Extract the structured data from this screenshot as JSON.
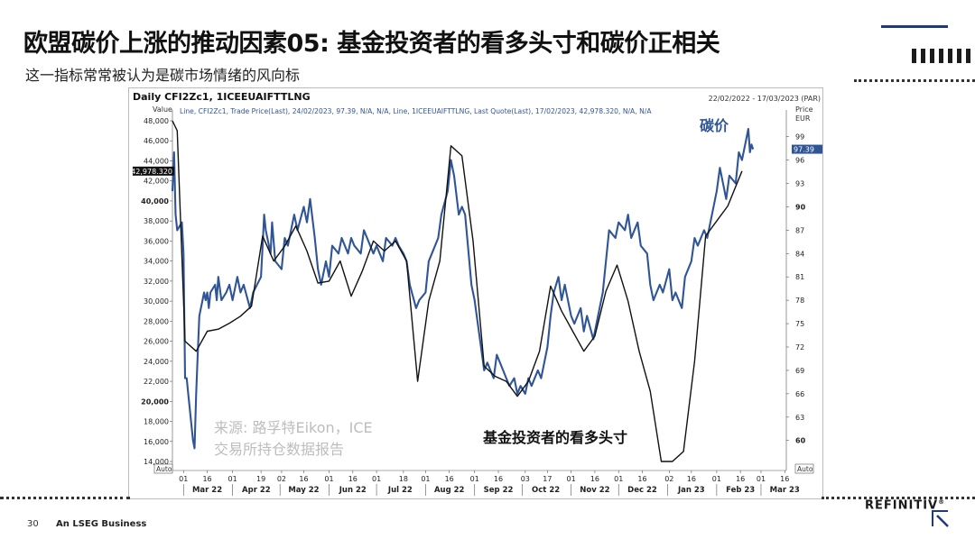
{
  "page": {
    "title": "欧盟碳价上涨的推动因素05: 基金投资者的看多头寸和碳价正相关",
    "subtitle": "这一指标常常被认为是碳市场情绪的风向标",
    "page_number": "30",
    "footer_text": "An LSEG Business",
    "brand": "REFINITIV",
    "brand_mark": "®"
  },
  "chart_data": {
    "type": "line",
    "header_title": "Daily CFI2Zc1, 1ICEEUAIFTTLNG",
    "date_range": "22/02/2022 - 17/03/2023 (PAR)",
    "legend_text": "Line, CFI2Zc1, Trade Price(Last), 24/02/2023, 97.39, N/A, N/A, Line, 1ICEEUAIFTTLNG, Last Quote(Last), 17/02/2023, 42,978.320, N/A, N/A",
    "left_axis_title": "Value",
    "right_axis_title": "Price",
    "right_axis_unit": "EUR",
    "left_axis": {
      "min": 14000,
      "max": 48000,
      "ticks": [
        "48,000",
        "46,000",
        "44,000",
        "42,000",
        "40,000",
        "38,000",
        "36,000",
        "34,000",
        "32,000",
        "30,000",
        "28,000",
        "26,000",
        "24,000",
        "22,000",
        "20,000",
        "18,000",
        "16,000",
        "14,000"
      ],
      "tick_values": [
        48000,
        46000,
        44000,
        42000,
        40000,
        38000,
        36000,
        34000,
        32000,
        30000,
        28000,
        26000,
        24000,
        22000,
        20000,
        18000,
        16000,
        14000
      ]
    },
    "right_axis": {
      "min": 58,
      "max": 100,
      "ticks": [
        "99",
        "96",
        "93",
        "90",
        "87",
        "84",
        "81",
        "78",
        "75",
        "72",
        "69",
        "66",
        "63",
        "60"
      ],
      "tick_values": [
        99,
        96,
        93,
        90,
        87,
        84,
        81,
        78,
        75,
        72,
        69,
        66,
        63,
        60
      ]
    },
    "last_value_left": "42,978.320",
    "last_value_right": "97.39",
    "auto_label": "Auto",
    "x_axis": {
      "start": "2022-02-22",
      "end": "2023-03-17",
      "day_ticks": [
        {
          "date": "2022-03-01",
          "label": "01"
        },
        {
          "date": "2022-03-16",
          "label": "16"
        },
        {
          "date": "2022-04-01",
          "label": "01"
        },
        {
          "date": "2022-04-19",
          "label": "19"
        },
        {
          "date": "2022-05-02",
          "label": "02"
        },
        {
          "date": "2022-05-16",
          "label": "16"
        },
        {
          "date": "2022-06-01",
          "label": "01"
        },
        {
          "date": "2022-06-16",
          "label": "16"
        },
        {
          "date": "2022-07-01",
          "label": "01"
        },
        {
          "date": "2022-07-18",
          "label": "18"
        },
        {
          "date": "2022-08-01",
          "label": "01"
        },
        {
          "date": "2022-08-16",
          "label": "16"
        },
        {
          "date": "2022-09-01",
          "label": "01"
        },
        {
          "date": "2022-09-16",
          "label": "16"
        },
        {
          "date": "2022-10-03",
          "label": "03"
        },
        {
          "date": "2022-10-17",
          "label": "17"
        },
        {
          "date": "2022-11-01",
          "label": "01"
        },
        {
          "date": "2022-11-16",
          "label": "16"
        },
        {
          "date": "2022-12-01",
          "label": "01"
        },
        {
          "date": "2022-12-16",
          "label": "16"
        },
        {
          "date": "2023-01-02",
          "label": "02"
        },
        {
          "date": "2023-01-16",
          "label": "16"
        },
        {
          "date": "2023-02-01",
          "label": "01"
        },
        {
          "date": "2023-02-16",
          "label": "16"
        },
        {
          "date": "2023-03-01",
          "label": "01"
        },
        {
          "date": "2023-03-16",
          "label": "16"
        }
      ],
      "month_labels": [
        {
          "date": "2022-03-16",
          "label": "Mar 22"
        },
        {
          "date": "2022-04-16",
          "label": "Apr 22"
        },
        {
          "date": "2022-05-16",
          "label": "May 22"
        },
        {
          "date": "2022-06-16",
          "label": "Jun 22"
        },
        {
          "date": "2022-07-16",
          "label": "Jul 22"
        },
        {
          "date": "2022-08-16",
          "label": "Aug 22"
        },
        {
          "date": "2022-09-16",
          "label": "Sep 22"
        },
        {
          "date": "2022-10-16",
          "label": "Oct 22"
        },
        {
          "date": "2022-11-16",
          "label": "Nov 22"
        },
        {
          "date": "2022-12-16",
          "label": "Dec 22"
        },
        {
          "date": "2023-01-16",
          "label": "Jan 23"
        },
        {
          "date": "2023-02-16",
          "label": "Feb 23"
        },
        {
          "date": "2023-03-16",
          "label": "Mar 23"
        }
      ],
      "month_starts": [
        "2022-03-01",
        "2022-04-01",
        "2022-05-01",
        "2022-06-01",
        "2022-07-01",
        "2022-08-01",
        "2022-09-01",
        "2022-10-01",
        "2022-11-01",
        "2022-12-01",
        "2023-01-01",
        "2023-02-01",
        "2023-03-01"
      ]
    },
    "series": [
      {
        "name": "碳价",
        "description": "CFI2Zc1 Trade Price (EUR, right axis)",
        "axis": "right",
        "color": "#2f5597",
        "points": [
          [
            "2022-02-22",
            92
          ],
          [
            "2022-02-23",
            97
          ],
          [
            "2022-02-24",
            89
          ],
          [
            "2022-02-25",
            87
          ],
          [
            "2022-02-28",
            88
          ],
          [
            "2022-03-01",
            84
          ],
          [
            "2022-03-02",
            68
          ],
          [
            "2022-03-03",
            68
          ],
          [
            "2022-03-04",
            66
          ],
          [
            "2022-03-07",
            60
          ],
          [
            "2022-03-08",
            59
          ],
          [
            "2022-03-09",
            66
          ],
          [
            "2022-03-10",
            71
          ],
          [
            "2022-03-11",
            76
          ],
          [
            "2022-03-14",
            79
          ],
          [
            "2022-03-15",
            78
          ],
          [
            "2022-03-16",
            79
          ],
          [
            "2022-03-17",
            77
          ],
          [
            "2022-03-18",
            79
          ],
          [
            "2022-03-21",
            80
          ],
          [
            "2022-03-22",
            78
          ],
          [
            "2022-03-23",
            81
          ],
          [
            "2022-03-25",
            78
          ],
          [
            "2022-03-28",
            79
          ],
          [
            "2022-03-30",
            80
          ],
          [
            "2022-04-01",
            78
          ],
          [
            "2022-04-04",
            81
          ],
          [
            "2022-04-06",
            79
          ],
          [
            "2022-04-08",
            80
          ],
          [
            "2022-04-12",
            77
          ],
          [
            "2022-04-14",
            79
          ],
          [
            "2022-04-19",
            81
          ],
          [
            "2022-04-20",
            85
          ],
          [
            "2022-04-21",
            89
          ],
          [
            "2022-04-22",
            87
          ],
          [
            "2022-04-25",
            84
          ],
          [
            "2022-04-26",
            88
          ],
          [
            "2022-04-28",
            83
          ],
          [
            "2022-05-02",
            82
          ],
          [
            "2022-05-04",
            86
          ],
          [
            "2022-05-06",
            85
          ],
          [
            "2022-05-10",
            89
          ],
          [
            "2022-05-12",
            87
          ],
          [
            "2022-05-16",
            90
          ],
          [
            "2022-05-18",
            88
          ],
          [
            "2022-05-20",
            91
          ],
          [
            "2022-05-23",
            86
          ],
          [
            "2022-05-25",
            82
          ],
          [
            "2022-05-27",
            80
          ],
          [
            "2022-05-30",
            83
          ],
          [
            "2022-06-01",
            81
          ],
          [
            "2022-06-03",
            85
          ],
          [
            "2022-06-07",
            84
          ],
          [
            "2022-06-09",
            86
          ],
          [
            "2022-06-13",
            84
          ],
          [
            "2022-06-15",
            86
          ],
          [
            "2022-06-17",
            85
          ],
          [
            "2022-06-21",
            84
          ],
          [
            "2022-06-23",
            87
          ],
          [
            "2022-06-27",
            85
          ],
          [
            "2022-06-29",
            84
          ],
          [
            "2022-07-01",
            85
          ],
          [
            "2022-07-05",
            83
          ],
          [
            "2022-07-07",
            86
          ],
          [
            "2022-07-11",
            85
          ],
          [
            "2022-07-13",
            86
          ],
          [
            "2022-07-15",
            85
          ],
          [
            "2022-07-18",
            84
          ],
          [
            "2022-07-20",
            83
          ],
          [
            "2022-07-22",
            80
          ],
          [
            "2022-07-26",
            77
          ],
          [
            "2022-07-28",
            78
          ],
          [
            "2022-08-01",
            79
          ],
          [
            "2022-08-03",
            83
          ],
          [
            "2022-08-05",
            84
          ],
          [
            "2022-08-09",
            86
          ],
          [
            "2022-08-11",
            89
          ],
          [
            "2022-08-15",
            92
          ],
          [
            "2022-08-17",
            96
          ],
          [
            "2022-08-19",
            94
          ],
          [
            "2022-08-22",
            89
          ],
          [
            "2022-08-24",
            90
          ],
          [
            "2022-08-26",
            89
          ],
          [
            "2022-08-30",
            80
          ],
          [
            "2022-09-01",
            78
          ],
          [
            "2022-09-05",
            72
          ],
          [
            "2022-09-07",
            69
          ],
          [
            "2022-09-09",
            70
          ],
          [
            "2022-09-13",
            68
          ],
          [
            "2022-09-15",
            71
          ],
          [
            "2022-09-19",
            69
          ],
          [
            "2022-09-21",
            68
          ],
          [
            "2022-09-23",
            67
          ],
          [
            "2022-09-26",
            68
          ],
          [
            "2022-09-28",
            66
          ],
          [
            "2022-09-30",
            67
          ],
          [
            "2022-10-03",
            66
          ],
          [
            "2022-10-05",
            68
          ],
          [
            "2022-10-07",
            67
          ],
          [
            "2022-10-11",
            69
          ],
          [
            "2022-10-13",
            68
          ],
          [
            "2022-10-17",
            72
          ],
          [
            "2022-10-19",
            76
          ],
          [
            "2022-10-21",
            79
          ],
          [
            "2022-10-24",
            81
          ],
          [
            "2022-10-26",
            78
          ],
          [
            "2022-10-28",
            80
          ],
          [
            "2022-11-01",
            76
          ],
          [
            "2022-11-03",
            75
          ],
          [
            "2022-11-07",
            77
          ],
          [
            "2022-11-09",
            74
          ],
          [
            "2022-11-11",
            76
          ],
          [
            "2022-11-15",
            73
          ],
          [
            "2022-11-17",
            75
          ],
          [
            "2022-11-21",
            79
          ],
          [
            "2022-11-23",
            83
          ],
          [
            "2022-11-25",
            87
          ],
          [
            "2022-11-29",
            86
          ],
          [
            "2022-12-01",
            88
          ],
          [
            "2022-12-05",
            87
          ],
          [
            "2022-12-07",
            89
          ],
          [
            "2022-12-09",
            86
          ],
          [
            "2022-12-13",
            88
          ],
          [
            "2022-12-15",
            85
          ],
          [
            "2022-12-19",
            84
          ],
          [
            "2022-12-21",
            80
          ],
          [
            "2022-12-23",
            78
          ],
          [
            "2022-12-27",
            80
          ],
          [
            "2022-12-29",
            79
          ],
          [
            "2023-01-02",
            82
          ],
          [
            "2023-01-04",
            78
          ],
          [
            "2023-01-06",
            79
          ],
          [
            "2023-01-10",
            77
          ],
          [
            "2023-01-12",
            81
          ],
          [
            "2023-01-16",
            83
          ],
          [
            "2023-01-18",
            86
          ],
          [
            "2023-01-20",
            85
          ],
          [
            "2023-01-24",
            87
          ],
          [
            "2023-01-26",
            86
          ],
          [
            "2023-01-30",
            90
          ],
          [
            "2023-02-01",
            92
          ],
          [
            "2023-02-03",
            95
          ],
          [
            "2023-02-07",
            91
          ],
          [
            "2023-02-09",
            94
          ],
          [
            "2023-02-13",
            93
          ],
          [
            "2023-02-15",
            97
          ],
          [
            "2023-02-17",
            96
          ],
          [
            "2023-02-20",
            99
          ],
          [
            "2023-02-21",
            100
          ],
          [
            "2023-02-22",
            97
          ],
          [
            "2023-02-23",
            98
          ],
          [
            "2023-02-24",
            97.39
          ]
        ]
      },
      {
        "name": "基金投资者的看多头寸",
        "description": "1ICEEUAIFTTLNG Last Quote (left axis)",
        "axis": "left",
        "color": "#111111",
        "points": [
          [
            "2022-02-22",
            48000
          ],
          [
            "2022-02-25",
            47000
          ],
          [
            "2022-03-02",
            26000
          ],
          [
            "2022-03-09",
            25000
          ],
          [
            "2022-03-16",
            27000
          ],
          [
            "2022-03-23",
            27200
          ],
          [
            "2022-03-30",
            27800
          ],
          [
            "2022-04-06",
            28500
          ],
          [
            "2022-04-13",
            29500
          ],
          [
            "2022-04-20",
            36500
          ],
          [
            "2022-04-27",
            34000
          ],
          [
            "2022-05-04",
            35500
          ],
          [
            "2022-05-11",
            37500
          ],
          [
            "2022-05-18",
            35000
          ],
          [
            "2022-05-25",
            31800
          ],
          [
            "2022-06-01",
            32000
          ],
          [
            "2022-06-08",
            34000
          ],
          [
            "2022-06-15",
            30500
          ],
          [
            "2022-06-22",
            33000
          ],
          [
            "2022-06-29",
            36000
          ],
          [
            "2022-07-06",
            35000
          ],
          [
            "2022-07-13",
            36000
          ],
          [
            "2022-07-20",
            34000
          ],
          [
            "2022-07-27",
            22000
          ],
          [
            "2022-08-03",
            30000
          ],
          [
            "2022-08-10",
            34000
          ],
          [
            "2022-08-17",
            45500
          ],
          [
            "2022-08-24",
            44500
          ],
          [
            "2022-08-31",
            36000
          ],
          [
            "2022-09-07",
            23500
          ],
          [
            "2022-09-14",
            22500
          ],
          [
            "2022-09-21",
            22000
          ],
          [
            "2022-09-28",
            20500
          ],
          [
            "2022-10-05",
            22000
          ],
          [
            "2022-10-12",
            25000
          ],
          [
            "2022-10-19",
            31500
          ],
          [
            "2022-10-26",
            29000
          ],
          [
            "2022-11-02",
            27000
          ],
          [
            "2022-11-09",
            25000
          ],
          [
            "2022-11-16",
            26500
          ],
          [
            "2022-11-23",
            31000
          ],
          [
            "2022-11-30",
            33600
          ],
          [
            "2022-12-07",
            30000
          ],
          [
            "2022-12-14",
            25000
          ],
          [
            "2022-12-21",
            21000
          ],
          [
            "2022-12-28",
            14000
          ],
          [
            "2023-01-04",
            14000
          ],
          [
            "2023-01-11",
            15000
          ],
          [
            "2023-01-18",
            24000
          ],
          [
            "2023-01-25",
            36500
          ],
          [
            "2023-02-01",
            38000
          ],
          [
            "2023-02-08",
            39500
          ],
          [
            "2023-02-17",
            42978.32
          ]
        ]
      }
    ],
    "annotations": {
      "carbon_label": "碳价",
      "positions_label": "基金投资者的看多头寸",
      "source_line1": "来源: 路孚特Eikon，ICE",
      "source_line2": "交易所持仓数据报告"
    }
  }
}
